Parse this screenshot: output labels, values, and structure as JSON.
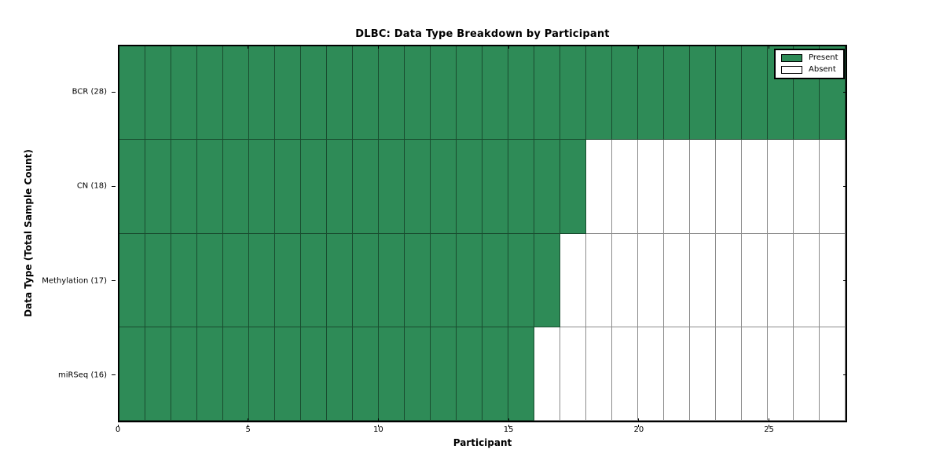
{
  "title": "DLBC: Data Type Breakdown by Participant",
  "colors": {
    "present": "#2E8B57",
    "absent": "#FFFFFF",
    "grid_line": "rgba(0,0,0,0.45)",
    "spine": "#000000"
  },
  "chart_data": {
    "type": "heatmap",
    "title": "DLBC: Data Type Breakdown by Participant",
    "xlabel": "Participant",
    "ylabel": "Data Type (Total Sample Count)",
    "x_range": [
      0,
      28
    ],
    "n_participants": 28,
    "x_tick_values": [
      0,
      5,
      10,
      15,
      20,
      25
    ],
    "x_tick_labels": [
      "0",
      "5",
      "10",
      "15",
      "20",
      "25"
    ],
    "grid": true,
    "legend_position": "upper right",
    "rows": [
      {
        "label": "BCR (28)",
        "data_type": "BCR",
        "total_sample_count": 28,
        "present_count": 28
      },
      {
        "label": "CN (18)",
        "data_type": "CN",
        "total_sample_count": 18,
        "present_count": 18
      },
      {
        "label": "Methylation (17)",
        "data_type": "Methylation",
        "total_sample_count": 17,
        "present_count": 17
      },
      {
        "label": "miRSeq (16)",
        "data_type": "miRSeq",
        "total_sample_count": 16,
        "present_count": 16
      }
    ],
    "legend": [
      {
        "label": "Present",
        "color": "#2E8B57"
      },
      {
        "label": "Absent",
        "color": "#FFFFFF"
      }
    ]
  }
}
